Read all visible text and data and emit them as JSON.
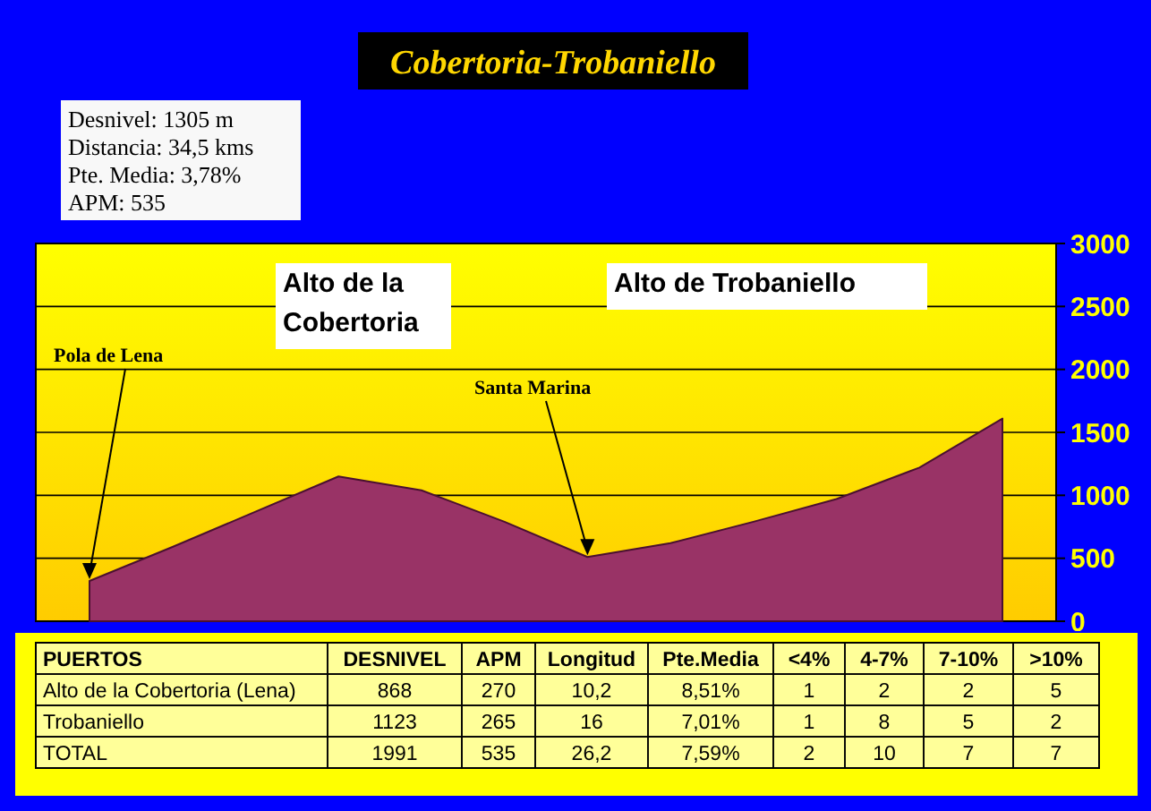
{
  "chart_data": [
    {
      "type": "area",
      "title": "Cobertoria-Trobaniello",
      "categories": [
        null,
        null,
        null,
        null,
        null,
        null,
        null,
        null,
        null,
        null,
        null,
        null
      ],
      "series": [
        {
          "color": "#993366",
          "values": [
            320,
            590,
            870,
            1150,
            1040,
            790,
            510,
            620,
            790,
            970,
            1220,
            1610
          ]
        }
      ],
      "ylim": [
        0,
        3000
      ],
      "yticks": [
        0,
        500,
        1000,
        1500,
        2000,
        2500,
        3000
      ],
      "grid": "y",
      "annotations": [
        "Desnivel: 1305 m",
        "Distancia: 34,5 kms",
        "Pte. Media: 3,78%",
        "APM: 535",
        "Pola de Lena",
        "Alto de la Cobertoria",
        "Santa Marina",
        "Alto de Trobaniello"
      ]
    },
    {
      "type": "other",
      "categories": [
        "PUERTOS",
        "DESNIVEL",
        "APM",
        "Longitud",
        "Pte.Media",
        "<4%",
        "4-7%",
        "7-10%",
        ">10%"
      ],
      "y_categories": [
        "Alto de la Cobertoria (Lena)",
        "Trobaniello",
        "TOTAL"
      ],
      "cell_labels": [
        [
          "868",
          "270",
          "10,2",
          "8,51%",
          "1",
          "2",
          "2",
          "5"
        ],
        [
          "1123",
          "265",
          "16",
          "7,01%",
          "1",
          "8",
          "5",
          "2"
        ],
        [
          "1991",
          "535",
          "26,2",
          "7,59%",
          "2",
          "10",
          "7",
          "7"
        ]
      ]
    }
  ]
}
